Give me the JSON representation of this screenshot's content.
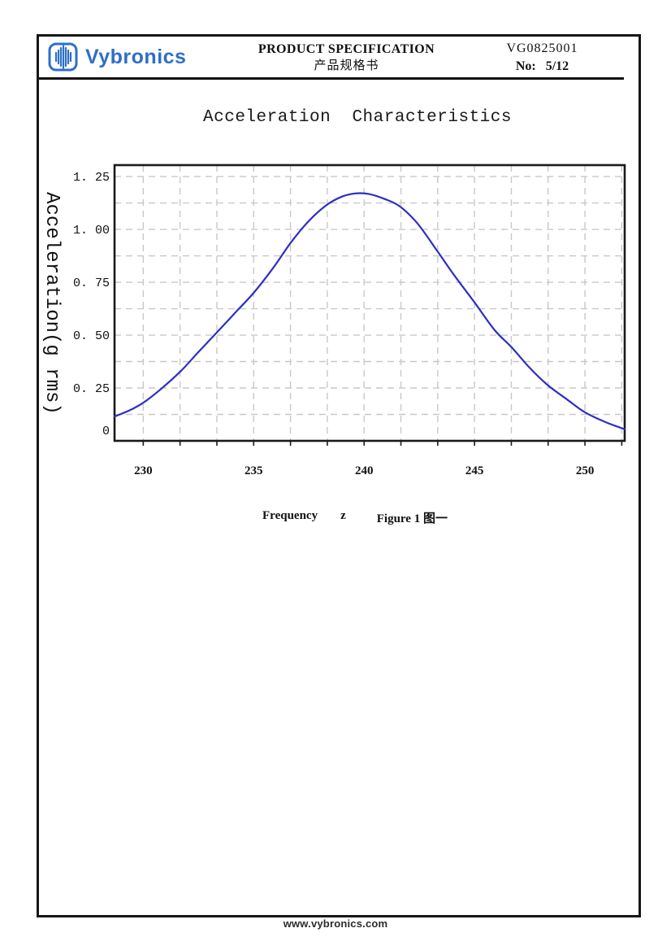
{
  "header": {
    "brand": "Vybronics",
    "brand_icon": "waveform-icon",
    "title_line1": "PRODUCT SPECIFICATION",
    "title_line2": "产品规格书",
    "doc_code": "VG0825001",
    "page_label": "No:",
    "page_value": "5/12"
  },
  "section_title": "Acceleration  Characteristics",
  "caption": {
    "axis_label": "Frequency",
    "axis_unit": "z",
    "figure_label": "Figure 1 图一"
  },
  "footer": {
    "url": "www.vybronics.com"
  },
  "colors": {
    "brand_blue": "#2f6fc6",
    "curve_blue": "#2e2ec4",
    "grid_gray": "#c8c8c8",
    "frame_black": "#1a1a1a"
  },
  "chart_data": {
    "type": "line",
    "title": "Acceleration Characteristics",
    "xlabel": "Frequency z",
    "ylabel": "Acceleration(g rms)",
    "xlim": [
      228.7,
      251.8
    ],
    "ylim": [
      0,
      1.304
    ],
    "grid": "dashed, minor x every 1.667 Hz, minor y every 0.125 g",
    "legend": null,
    "x_tick_values": [
      230,
      235,
      240,
      245,
      250
    ],
    "x_tick_labels": [
      "230",
      "235",
      "240",
      "245",
      "250"
    ],
    "y_ticks": [
      {
        "value": 0,
        "label": "0"
      },
      {
        "value": 0.25,
        "label": "0. 25"
      },
      {
        "value": 0.5,
        "label": "0. 50"
      },
      {
        "value": 0.75,
        "label": "0. 75"
      },
      {
        "value": 1.0,
        "label": "1. 00"
      },
      {
        "value": 1.25,
        "label": "1. 25"
      }
    ],
    "x_grid": {
      "start": 230,
      "step": 1.6667,
      "count": 14
    },
    "y_grid": {
      "start": 0.125,
      "step": 0.125,
      "count": 10
    },
    "peak": {
      "frequency": 239.6,
      "acceleration": 1.17
    },
    "series": [
      {
        "name": "acceleration",
        "color": "#2e2ec4",
        "points": [
          [
            228.7,
            0.115
          ],
          [
            229.4,
            0.145
          ],
          [
            230.0,
            0.18
          ],
          [
            230.8,
            0.245
          ],
          [
            231.7,
            0.33
          ],
          [
            232.5,
            0.42
          ],
          [
            233.4,
            0.52
          ],
          [
            234.2,
            0.61
          ],
          [
            235.0,
            0.7
          ],
          [
            235.9,
            0.82
          ],
          [
            236.7,
            0.94
          ],
          [
            237.5,
            1.04
          ],
          [
            238.3,
            1.115
          ],
          [
            239.0,
            1.155
          ],
          [
            239.6,
            1.17
          ],
          [
            240.2,
            1.168
          ],
          [
            240.9,
            1.145
          ],
          [
            241.6,
            1.11
          ],
          [
            242.4,
            1.03
          ],
          [
            243.3,
            0.9
          ],
          [
            244.1,
            0.78
          ],
          [
            245.0,
            0.655
          ],
          [
            245.9,
            0.525
          ],
          [
            246.7,
            0.44
          ],
          [
            247.5,
            0.345
          ],
          [
            248.3,
            0.265
          ],
          [
            249.2,
            0.195
          ],
          [
            250.0,
            0.135
          ],
          [
            250.9,
            0.09
          ],
          [
            251.8,
            0.055
          ]
        ]
      }
    ]
  }
}
